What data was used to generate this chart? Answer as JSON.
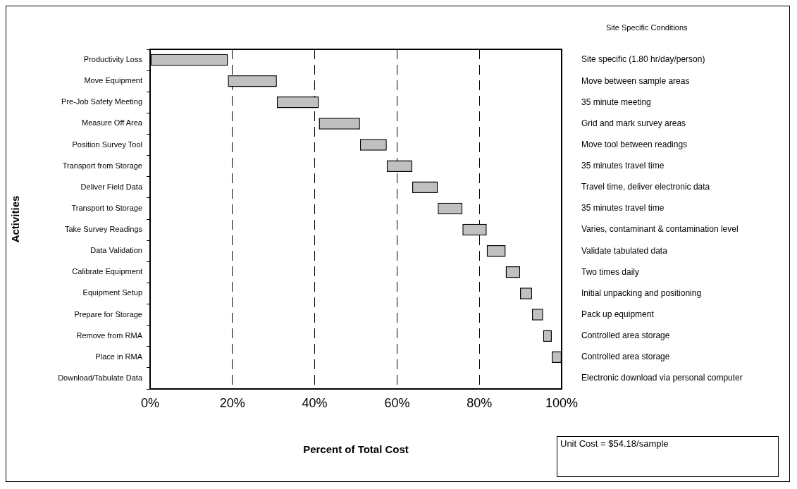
{
  "chart_data": {
    "type": "bar",
    "orientation": "horizontal",
    "xlabel": "Percent of Total Cost",
    "ylabel": "Activities",
    "categories": [
      "Productivity Loss",
      "Move Equipment",
      "Pre-Job Safety Meeting",
      "Measure Off Area",
      "Position Survey Tool",
      "Transport from Storage",
      "Deliver Field Data",
      "Transport to Storage",
      "Take Survey Readings",
      "Data Validation",
      "Calibrate Equipment",
      "Equipment Setup",
      "Prepare for Storage",
      "Remove from RMA",
      "Place in RMA",
      "Download/Tabulate Data"
    ],
    "values": [
      18.9,
      11.9,
      10.2,
      10.0,
      6.5,
      6.2,
      6.2,
      6.0,
      5.9,
      4.6,
      3.5,
      2.9,
      2.7,
      2.1,
      2.4,
      null
    ],
    "base": [
      0,
      18.9,
      30.8,
      41.0,
      51.0,
      57.5,
      63.7,
      69.9,
      75.9,
      81.8,
      86.4,
      89.9,
      92.8,
      95.5,
      97.6,
      null
    ],
    "color": "#c0c0c0",
    "xlim": [
      0,
      100
    ],
    "xticks": [
      {
        "value": 0,
        "label": "0%"
      },
      {
        "value": 20,
        "label": "20%"
      },
      {
        "value": 40,
        "label": "40%"
      },
      {
        "value": 60,
        "label": "60%"
      },
      {
        "value": 80,
        "label": "80%"
      },
      {
        "value": 100,
        "label": "100%"
      }
    ],
    "grid": "x",
    "legend": false,
    "annotations": [
      "Site Specific Conditions",
      "Unit Cost = $54.18/sample",
      "Site specific (1.80 hr/day/person)",
      "Move between sample areas",
      "35 minute meeting",
      "Grid and mark survey areas",
      "Move tool between readings",
      "35 minutes travel time",
      "Travel time, deliver electronic data",
      "35 minutes travel time",
      "Varies, contaminant & contamination level",
      "Validate tabulated data",
      "Two times daily",
      "Initial unpacking and positioning",
      "Pack up equipment",
      "Controlled area storage",
      "Controlled area storage",
      "Electronic download via personal computer"
    ]
  }
}
